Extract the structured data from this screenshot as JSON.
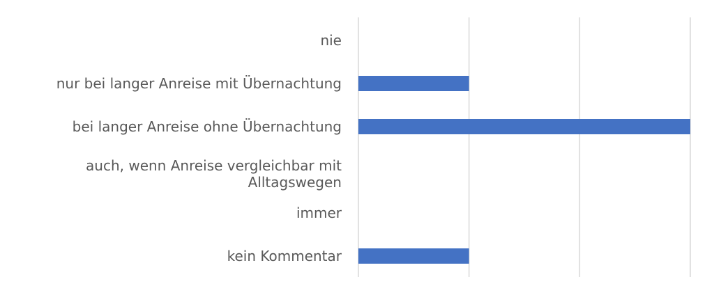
{
  "chart_data": {
    "type": "bar",
    "orientation": "horizontal",
    "categories": [
      "nie",
      "nur bei langer Anreise mit Übernachtung",
      "bei langer Anreise ohne Übernachtung",
      [
        "auch, wenn  Anreise vergleichbar mit",
        "Alltagswegen"
      ],
      "immer",
      "kein Kommentar"
    ],
    "values": [
      0,
      1,
      3,
      0,
      0,
      1
    ],
    "xlim": [
      0,
      3
    ],
    "gridlines": [
      0,
      1,
      2,
      3
    ],
    "grid": true,
    "title": "",
    "xlabel": "",
    "ylabel": "",
    "colors": {
      "bar": "#4472C4",
      "grid": "#D9D9D9",
      "text": "#595959"
    }
  }
}
